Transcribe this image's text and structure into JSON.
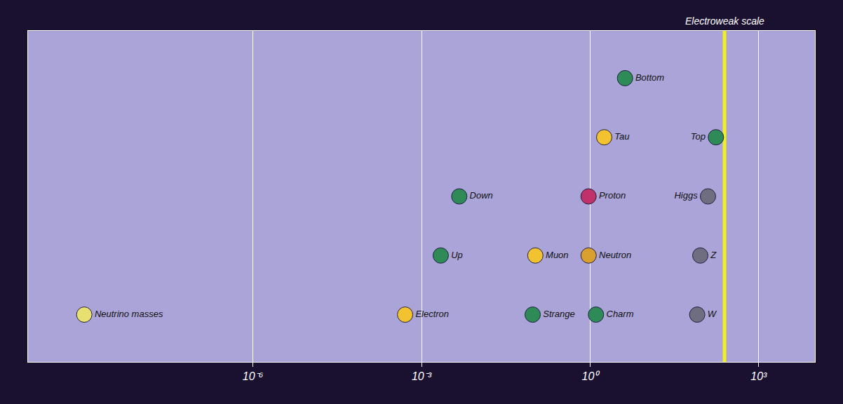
{
  "chart_data": {
    "type": "scatter",
    "log": "x",
    "grid": true,
    "tick_labels": "x",
    "xlim": [
      1e-10,
      10000
    ],
    "xticks": [
      {
        "value": 1e-06,
        "label": "10⁻⁶"
      },
      {
        "value": 0.001,
        "label": "10⁻³"
      },
      {
        "value": 1,
        "label": "10⁰"
      },
      {
        "value": 1000,
        "label": "10³"
      }
    ],
    "labels": [
      "Neutrino masses",
      "Electron",
      "Up",
      "Down",
      "Strange",
      "Muon",
      "Neutron",
      "Proton",
      "Charm",
      "Tau",
      "Bottom",
      "W",
      "Z",
      "Higgs",
      "Top"
    ],
    "x": [
      1e-09,
      0.000511,
      0.0022,
      0.0047,
      0.095,
      0.106,
      0.94,
      0.938,
      1.27,
      1.78,
      4.18,
      80.4,
      91.2,
      125,
      173
    ],
    "colors": [
      "#e8e070",
      "#f2c230",
      "#2e8b57",
      "#2e8b57",
      "#2e8b57",
      "#f2c230",
      "#d9a030",
      "#c0306a",
      "#2e8b57",
      "#f2c230",
      "#2e8b57",
      "#6e6e80",
      "#6e6e80",
      "#6e6e80",
      "#2e8b57"
    ],
    "annotations": [
      {
        "text": "Electroweak scale",
        "x": 246,
        "color": "#f0f020"
      }
    ]
  }
}
